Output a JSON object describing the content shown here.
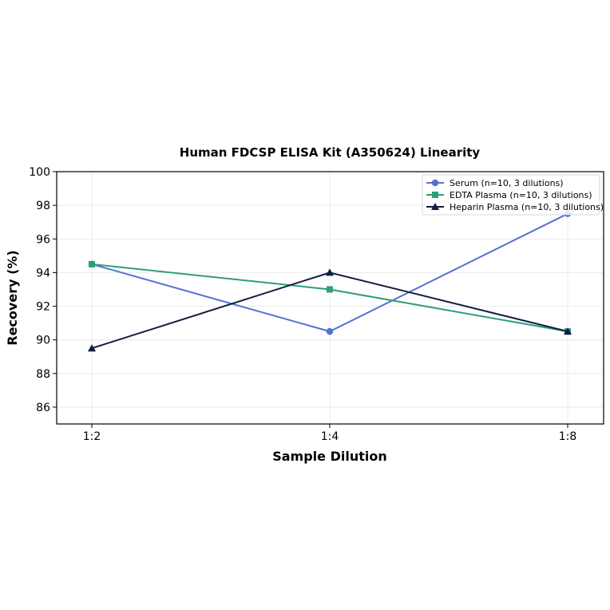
{
  "chart_data": {
    "type": "line",
    "title": "Human FDCSP ELISA Kit (A350624) Linearity",
    "xlabel": "Sample Dilution",
    "ylabel": "Recovery (%)",
    "categories": [
      "1:2",
      "1:4",
      "1:8"
    ],
    "ylim": [
      85,
      100
    ],
    "yticks": [
      86,
      88,
      90,
      92,
      94,
      96,
      98,
      100
    ],
    "grid": true,
    "legend_position": "top-right",
    "series": [
      {
        "name": "Serum (n=10, 3 dilutions)",
        "values": [
          94.5,
          90.5,
          97.5
        ],
        "color": "#5472d3",
        "marker": "circle"
      },
      {
        "name": "EDTA Plasma (n=10, 3 dilutions)",
        "values": [
          94.5,
          93.0,
          90.5
        ],
        "color": "#2e9e78",
        "marker": "square"
      },
      {
        "name": "Heparin Plasma (n=10, 3 dilutions)",
        "values": [
          89.5,
          94.0,
          90.5
        ],
        "color": "#111d45",
        "marker": "triangle"
      }
    ]
  }
}
